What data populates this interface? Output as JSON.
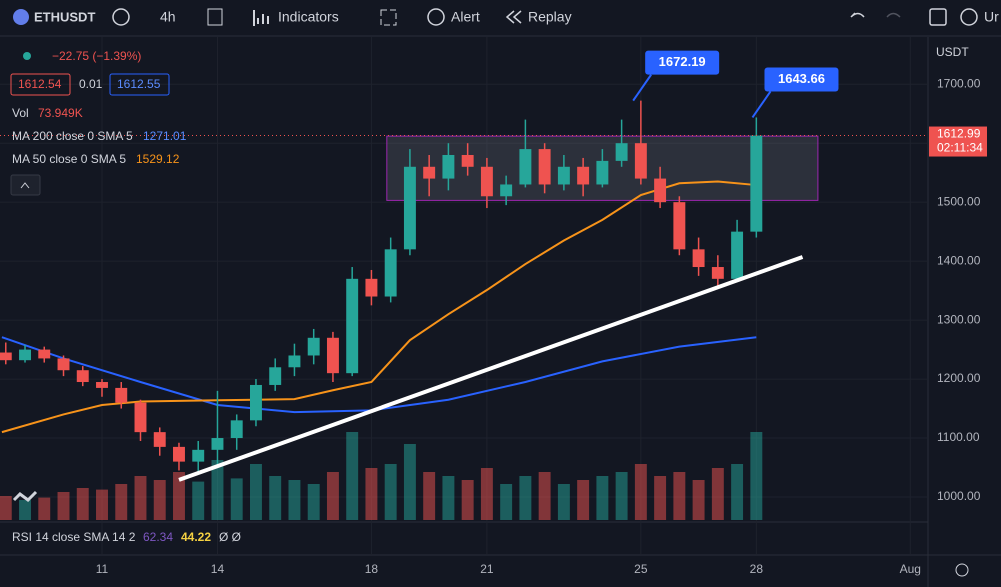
{
  "toolbar": {
    "symbol": "ETHUSDT",
    "interval": "4h",
    "indicators": "Indicators",
    "alert": "Alert",
    "replay": "Replay",
    "cut": "Ur"
  },
  "legend": {
    "change": "−22.75 (−1.39%)",
    "bid": 1612.54,
    "spread": 0.01,
    "ask": 1612.55,
    "vol_label": "Vol",
    "vol_value": "73.949K"
  },
  "rsi": {
    "name": "RSI 14 close SMA 14 2",
    "value": 62.34,
    "sma": 44.22,
    "extra": "Ø Ø"
  },
  "chart_data": {
    "type": "candlestick",
    "currency": "USDT",
    "x": [
      8.5,
      9,
      9.5,
      10,
      10.5,
      11,
      11.5,
      12,
      12.5,
      13,
      13.5,
      14,
      14.5,
      15,
      15.5,
      16,
      16.5,
      17,
      17.5,
      18,
      18.5,
      19,
      19.5,
      20,
      20.5,
      21,
      21.5,
      22,
      22.5,
      23,
      23.5,
      24,
      24.5,
      25,
      25.5,
      26,
      26.5,
      27,
      27.5,
      28
    ],
    "open": [
      1245,
      1232,
      1250,
      1235,
      1215,
      1195,
      1185,
      1160,
      1110,
      1085,
      1060,
      1080,
      1100,
      1130,
      1190,
      1220,
      1240,
      1270,
      1210,
      1370,
      1340,
      1420,
      1560,
      1540,
      1580,
      1560,
      1510,
      1530,
      1590,
      1530,
      1560,
      1530,
      1570,
      1600,
      1540,
      1500,
      1420,
      1390,
      1370,
      1450
    ],
    "high": [
      1262,
      1258,
      1255,
      1240,
      1222,
      1200,
      1195,
      1165,
      1118,
      1092,
      1095,
      1180,
      1140,
      1200,
      1235,
      1260,
      1285,
      1280,
      1390,
      1385,
      1440,
      1590,
      1580,
      1600,
      1600,
      1575,
      1545,
      1640,
      1600,
      1580,
      1575,
      1590,
      1640,
      1672.19,
      1560,
      1510,
      1440,
      1410,
      1470,
      1643.66
    ],
    "low": [
      1225,
      1228,
      1228,
      1205,
      1188,
      1170,
      1150,
      1095,
      1070,
      1045,
      1040,
      1050,
      1080,
      1120,
      1180,
      1205,
      1225,
      1195,
      1205,
      1325,
      1330,
      1410,
      1510,
      1520,
      1545,
      1490,
      1495,
      1525,
      1515,
      1520,
      1510,
      1525,
      1560,
      1530,
      1490,
      1410,
      1375,
      1355,
      1365,
      1440
    ],
    "close": [
      1232,
      1250,
      1235,
      1215,
      1195,
      1185,
      1160,
      1110,
      1085,
      1060,
      1080,
      1100,
      1130,
      1190,
      1220,
      1240,
      1270,
      1210,
      1370,
      1340,
      1420,
      1560,
      1540,
      1580,
      1560,
      1510,
      1530,
      1590,
      1530,
      1560,
      1530,
      1570,
      1600,
      1540,
      1500,
      1420,
      1390,
      1370,
      1450,
      1612.99
    ],
    "volume": [
      30,
      25,
      28,
      35,
      40,
      38,
      45,
      55,
      50,
      60,
      48,
      75,
      52,
      70,
      55,
      50,
      45,
      60,
      110,
      65,
      70,
      95,
      60,
      55,
      50,
      65,
      45,
      55,
      60,
      45,
      50,
      55,
      60,
      70,
      55,
      60,
      50,
      65,
      70,
      110
    ],
    "volume_lim": [
      0,
      160
    ],
    "ylim": [
      961,
      1775
    ],
    "yticks": [
      {
        "value": 1000,
        "label": "1000.00"
      },
      {
        "value": 1100,
        "label": "1100.00"
      },
      {
        "value": 1200,
        "label": "1200.00"
      },
      {
        "value": 1300,
        "label": "1300.00"
      },
      {
        "value": 1400,
        "label": "1400.00"
      },
      {
        "value": 1500,
        "label": "1500.00"
      },
      {
        "value": 1600,
        "label": "1600.00"
      },
      {
        "value": 1700,
        "label": "1700.00"
      }
    ],
    "xlim": [
      8.35,
      32.46
    ],
    "xticks": [
      11,
      14,
      18,
      21,
      25,
      28,
      {
        "value": 32,
        "label": "Aug"
      }
    ],
    "series": [
      {
        "name": "MA 200 close 0 SMA 5",
        "color": "#2962ff",
        "last": 1271.01,
        "x": [
          8.4,
          10,
          12,
          14,
          16,
          18,
          20,
          22,
          24,
          26,
          28
        ],
        "values": [
          1271,
          1235,
          1195,
          1156,
          1144,
          1147,
          1165,
          1195,
          1230,
          1255,
          1271
        ]
      },
      {
        "name": "MA 50 close 0 SMA 5",
        "color": "#f7931a",
        "last": 1529.12,
        "x": [
          8.4,
          10,
          11,
          12,
          14,
          16,
          17,
          18,
          19,
          20,
          21,
          22,
          23,
          24,
          25,
          26,
          27,
          28
        ],
        "values": [
          1110,
          1140,
          1156,
          1162,
          1164,
          1166,
          1181,
          1195,
          1266,
          1310,
          1351,
          1395,
          1435,
          1470,
          1512,
          1532,
          1535,
          1529
        ]
      }
    ],
    "last_price": {
      "value": 1612.99,
      "countdown": "02:11:34"
    },
    "annotations": [
      {
        "x": 24.8,
        "value": 1672.19
      },
      {
        "x": 27.9,
        "value": 1643.66
      }
    ],
    "box": {
      "x": [
        18.4,
        29.6
      ],
      "y": [
        1503,
        1612
      ]
    },
    "trend_line": {
      "x": [
        13,
        29.2
      ],
      "y": [
        1029,
        1407
      ]
    }
  }
}
